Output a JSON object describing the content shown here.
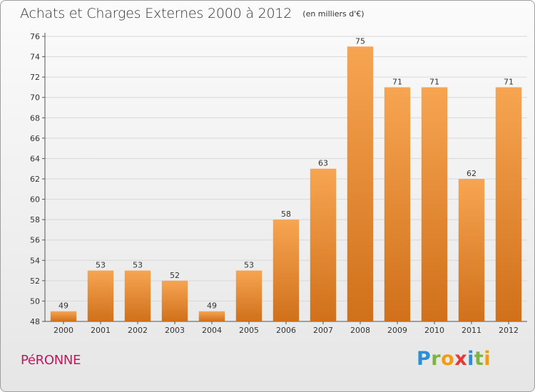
{
  "header": {
    "title": "Achats et Charges Externes 2000 à 2012",
    "subtitle": "(en milliers d'€)"
  },
  "footer": {
    "commune": "PéRONNE",
    "brand_letters": [
      {
        "char": "P",
        "color": "#2a8fd6"
      },
      {
        "char": "r",
        "color": "#7cb342"
      },
      {
        "char": "o",
        "color": "#f39c12"
      },
      {
        "char": "x",
        "color": "#e53935"
      },
      {
        "char": "i",
        "color": "#2a8fd6"
      },
      {
        "char": "t",
        "color": "#7cb342"
      },
      {
        "char": "i",
        "color": "#f39c12"
      }
    ]
  },
  "colors": {
    "bar_top": "#f7a552",
    "bar_bottom": "#d0701a",
    "grid": "#d8d8d8",
    "text": "#333333"
  },
  "chart_data": {
    "type": "bar",
    "title": "Achats et Charges Externes 2000 à 2012",
    "subtitle": "(en milliers d'€)",
    "categories": [
      "2000",
      "2001",
      "2002",
      "2003",
      "2004",
      "2005",
      "2006",
      "2007",
      "2008",
      "2009",
      "2010",
      "2011",
      "2012"
    ],
    "values": [
      49,
      53,
      53,
      52,
      49,
      53,
      58,
      63,
      75,
      71,
      71,
      62,
      71
    ],
    "ylim": [
      48,
      76
    ],
    "yticks": [
      48,
      50,
      52,
      54,
      56,
      58,
      60,
      62,
      64,
      66,
      68,
      70,
      72,
      74,
      76
    ],
    "xlabel": "",
    "ylabel": "",
    "grid": true,
    "data_labels": true
  }
}
